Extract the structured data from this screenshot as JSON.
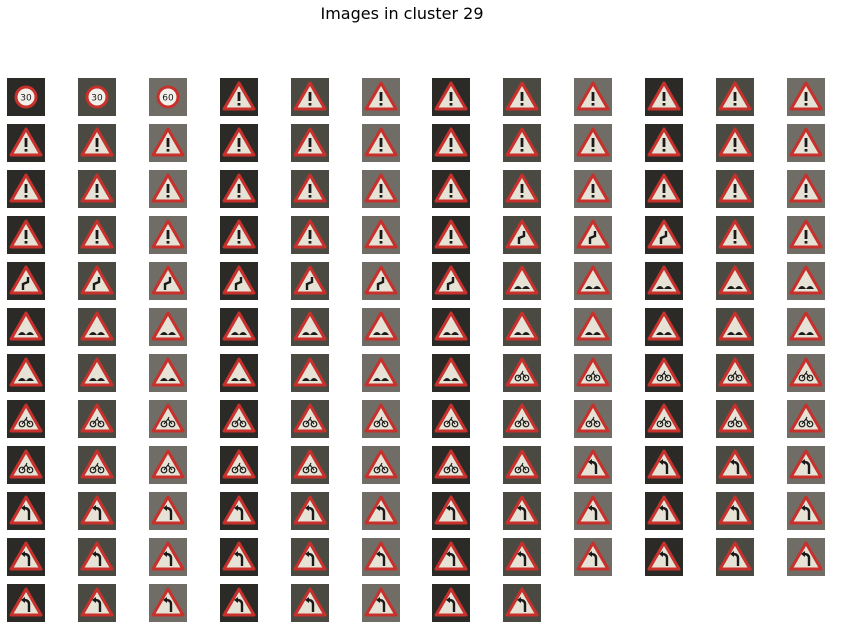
{
  "title": "Images in cluster 29",
  "grid": {
    "rows": 12,
    "cols": 12,
    "row_counts": [
      12,
      12,
      12,
      12,
      12,
      12,
      12,
      12,
      12,
      12,
      12,
      8
    ]
  },
  "cells": [
    [
      "speed-limit-30",
      "speed-limit-30",
      "speed-limit-60",
      "exclamation",
      "exclamation",
      "exclamation",
      "exclamation",
      "exclamation",
      "exclamation",
      "exclamation",
      "exclamation",
      "exclamation"
    ],
    [
      "exclamation",
      "exclamation",
      "exclamation",
      "exclamation",
      "exclamation",
      "exclamation",
      "exclamation",
      "exclamation",
      "exclamation",
      "exclamation",
      "exclamation",
      "exclamation"
    ],
    [
      "exclamation",
      "exclamation",
      "exclamation",
      "exclamation",
      "exclamation",
      "exclamation",
      "exclamation",
      "exclamation",
      "exclamation",
      "exclamation",
      "exclamation",
      "exclamation"
    ],
    [
      "exclamation",
      "exclamation",
      "exclamation",
      "exclamation",
      "exclamation",
      "exclamation",
      "exclamation",
      "double-curve",
      "double-curve",
      "double-curve",
      "exclamation",
      "exclamation"
    ],
    [
      "double-curve",
      "double-curve",
      "double-curve",
      "double-curve",
      "double-curve",
      "double-curve",
      "double-curve",
      "bumpy-road",
      "bumpy-road",
      "bumpy-road",
      "bumpy-road",
      "bumpy-road"
    ],
    [
      "bumpy-road",
      "bumpy-road",
      "bumpy-road",
      "bumpy-road",
      "bumpy-road",
      "bumpy-road",
      "bumpy-road",
      "bumpy-road",
      "bumpy-road",
      "bumpy-road",
      "bumpy-road",
      "bumpy-road"
    ],
    [
      "bumpy-road",
      "bumpy-road",
      "bumpy-road",
      "bumpy-road",
      "bumpy-road",
      "bumpy-road",
      "bumpy-road",
      "cycles-crossing",
      "cycles-crossing",
      "cycles-crossing",
      "cycles-crossing",
      "cycles-crossing"
    ],
    [
      "cycles-crossing",
      "cycles-crossing",
      "cycles-crossing",
      "cycles-crossing",
      "cycles-crossing",
      "cycles-crossing",
      "cycles-crossing",
      "cycles-crossing",
      "cycles-crossing",
      "cycles-crossing",
      "cycles-crossing",
      "cycles-crossing"
    ],
    [
      "cycles-crossing",
      "cycles-crossing",
      "cycles-crossing",
      "cycles-crossing",
      "cycles-crossing",
      "cycles-crossing",
      "cycles-crossing",
      "cycles-crossing",
      "dangerous-curve-left",
      "dangerous-curve-left",
      "dangerous-curve-left",
      "dangerous-curve-left"
    ],
    [
      "dangerous-curve-left",
      "dangerous-curve-left",
      "dangerous-curve-left",
      "dangerous-curve-left",
      "dangerous-curve-left",
      "dangerous-curve-left",
      "dangerous-curve-left",
      "dangerous-curve-left",
      "dangerous-curve-left",
      "dangerous-curve-left",
      "dangerous-curve-left",
      "dangerous-curve-left"
    ],
    [
      "dangerous-curve-left",
      "dangerous-curve-left",
      "dangerous-curve-left",
      "dangerous-curve-left",
      "dangerous-curve-left",
      "dangerous-curve-left",
      "dangerous-curve-left",
      "dangerous-curve-left",
      "dangerous-curve-left",
      "dangerous-curve-left",
      "dangerous-curve-left",
      "dangerous-curve-left"
    ],
    [
      "dangerous-curve-left",
      "dangerous-curve-left",
      "dangerous-curve-left",
      "dangerous-curve-left",
      "dangerous-curve-left",
      "dangerous-curve-left",
      "dangerous-curve-left",
      "dangerous-curve-left"
    ]
  ],
  "colors": {
    "sign_border": "#c8302c",
    "sign_fill": "#e6e2d6",
    "symbol": "#1a1a1a",
    "round_sign_fill": "#f2f0ea",
    "background_dark": "#2b2a26",
    "background_mid": "#4a4a42",
    "background_light": "#6f6d66"
  }
}
